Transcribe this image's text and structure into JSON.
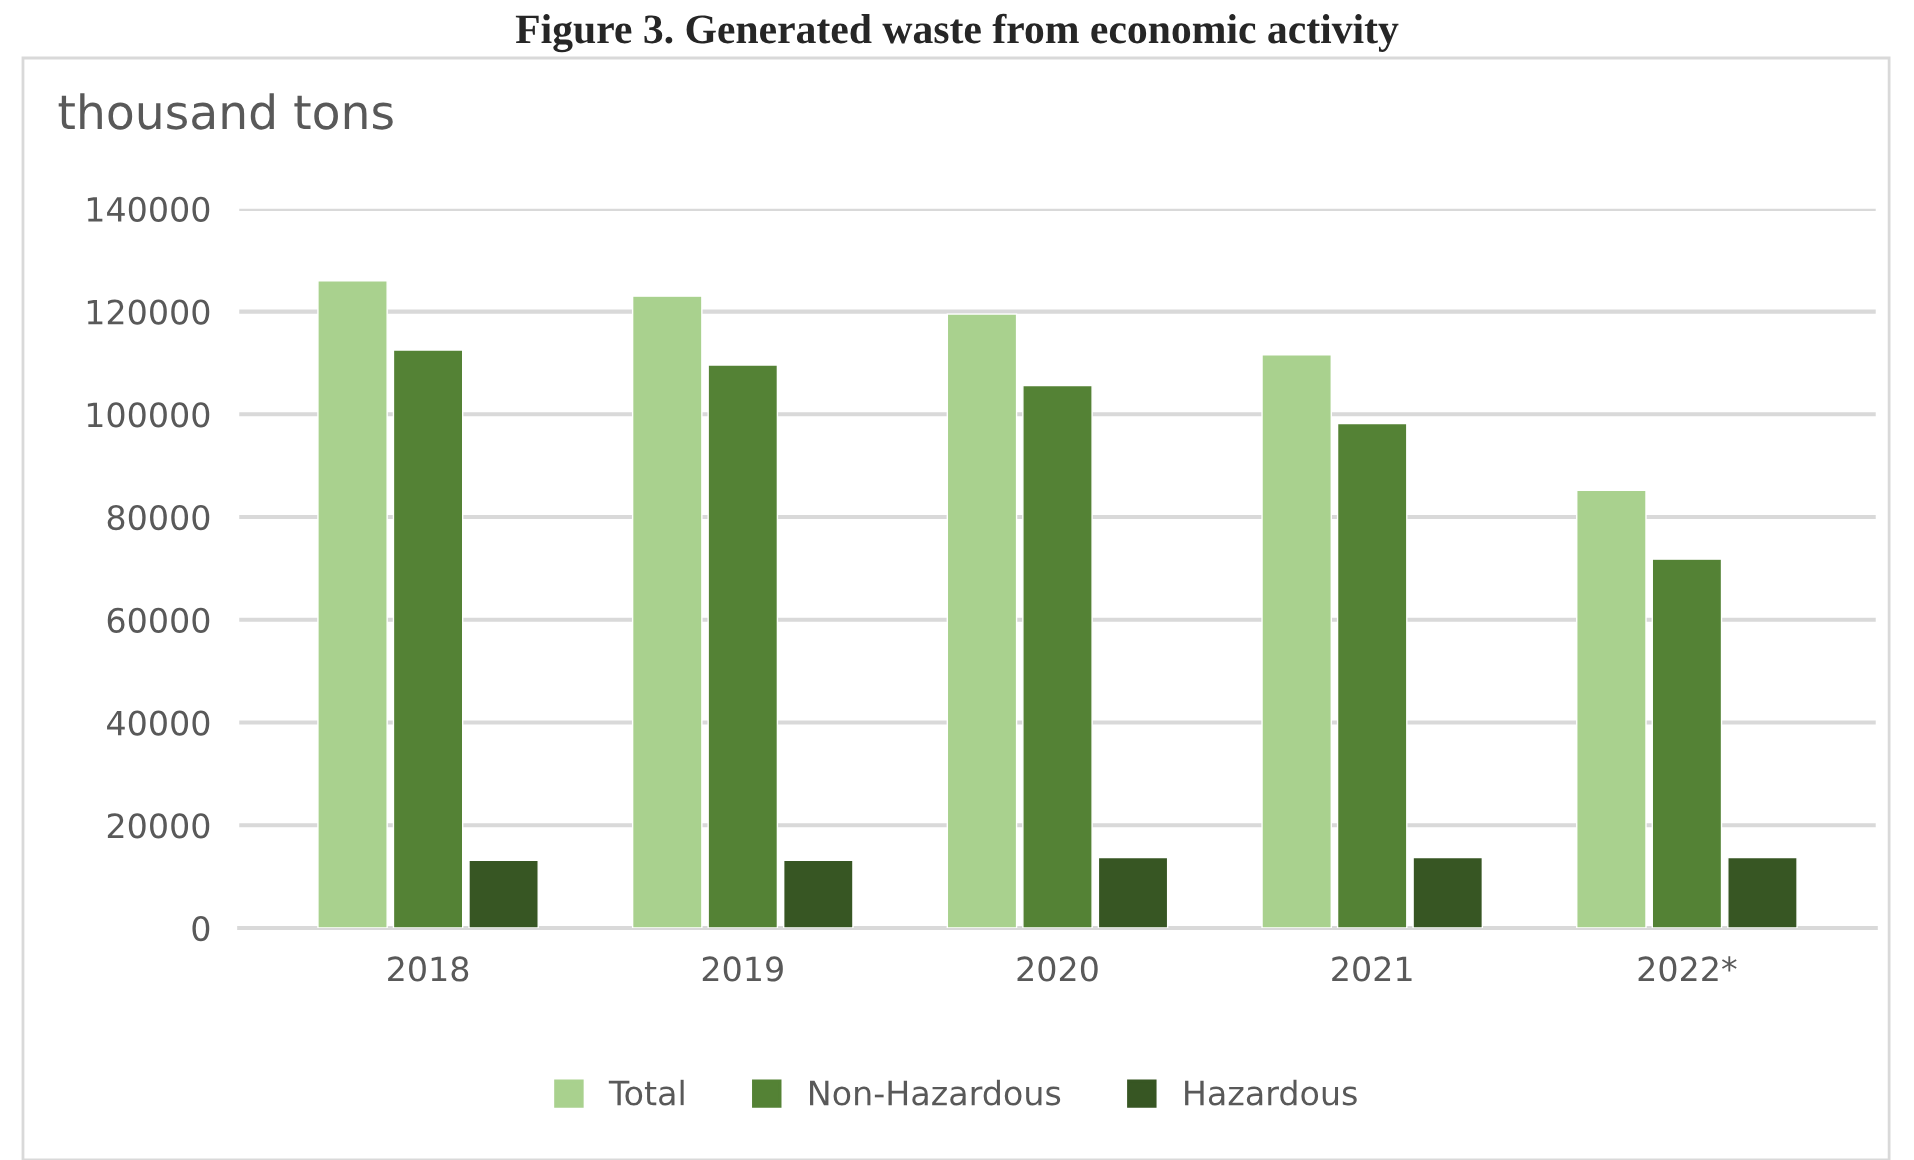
{
  "chart_data": {
    "type": "bar",
    "title": "Figure 3. Generated waste from economic activity",
    "ylabel": "thousand tons",
    "categories": [
      "2018",
      "2019",
      "2020",
      "2021",
      "2022*"
    ],
    "series": [
      {
        "name": "Total",
        "color": "#a9d18e",
        "values": [
          126000,
          123000,
          119500,
          111600,
          85200
        ]
      },
      {
        "name": "Non-Hazardous",
        "color": "#548235",
        "values": [
          112500,
          109600,
          105600,
          98200,
          71800
        ]
      },
      {
        "name": "Hazardous",
        "color": "#375623",
        "values": [
          13200,
          13200,
          13700,
          13700,
          13700
        ]
      }
    ],
    "ylim": [
      0,
      140000
    ],
    "yticks": [
      0,
      20000,
      40000,
      60000,
      80000,
      100000,
      120000,
      140000
    ],
    "grid": "y",
    "legend": "bottom"
  }
}
